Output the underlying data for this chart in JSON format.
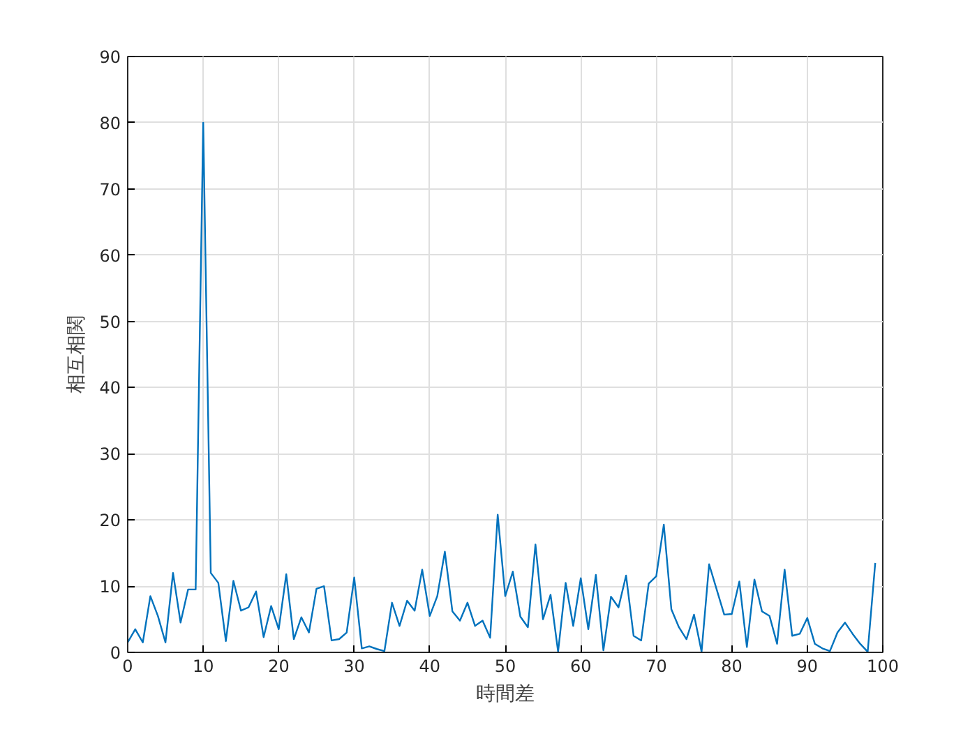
{
  "chart_data": {
    "type": "line",
    "xlabel": "時間差",
    "ylabel": "相互相関",
    "x": [
      0,
      1,
      2,
      3,
      4,
      5,
      6,
      7,
      8,
      9,
      10,
      11,
      12,
      13,
      14,
      15,
      16,
      17,
      18,
      19,
      20,
      21,
      22,
      23,
      24,
      25,
      26,
      27,
      28,
      29,
      30,
      31,
      32,
      33,
      34,
      35,
      36,
      37,
      38,
      39,
      40,
      41,
      42,
      43,
      44,
      45,
      46,
      47,
      48,
      49,
      50,
      51,
      52,
      53,
      54,
      55,
      56,
      57,
      58,
      59,
      60,
      61,
      62,
      63,
      64,
      65,
      66,
      67,
      68,
      69,
      70,
      71,
      72,
      73,
      74,
      75,
      76,
      77,
      78,
      79,
      80,
      81,
      82,
      83,
      84,
      85,
      86,
      87,
      88,
      89,
      90,
      91,
      92,
      93,
      94,
      95,
      96,
      97,
      98,
      99
    ],
    "series": [
      {
        "color": "#0072bd",
        "values": [
          1.5,
          3.5,
          1.5,
          8.5,
          5.5,
          1.5,
          12,
          4.5,
          9.5,
          9.5,
          80,
          12,
          10.5,
          1.7,
          10.8,
          6.3,
          6.8,
          9.2,
          2.3,
          7,
          3.5,
          11.8,
          2,
          5.3,
          3,
          9.6,
          10,
          1.8,
          2,
          3,
          11.3,
          0.6,
          0.9,
          0.5,
          0.2,
          7.5,
          4,
          7.8,
          6.3,
          12.5,
          5.5,
          8.5,
          15.2,
          6.2,
          4.8,
          7.5,
          4,
          4.8,
          2.2,
          20.8,
          8.5,
          12.2,
          5.4,
          3.8,
          16.3,
          5,
          8.7,
          0.1,
          10.5,
          4,
          11.2,
          3.5,
          11.7,
          0.3,
          8.4,
          6.8,
          11.6,
          2.5,
          1.8,
          10.4,
          11.5,
          19.3,
          6.5,
          3.8,
          2,
          5.7,
          0.1,
          13.3,
          9.5,
          5.7,
          5.8,
          10.7,
          0.8,
          11,
          6.2,
          5.5,
          1.3,
          12.5,
          2.5,
          2.8,
          5.2,
          1.3,
          0.6,
          0.2,
          3,
          4.5,
          2.8,
          1.3,
          0.1,
          13.5
        ]
      }
    ],
    "xlim": [
      0,
      100
    ],
    "ylim": [
      0,
      90
    ],
    "xticks": [
      0,
      10,
      20,
      30,
      40,
      50,
      60,
      70,
      80,
      90,
      100
    ],
    "yticks": [
      0,
      10,
      20,
      30,
      40,
      50,
      60,
      70,
      80,
      90
    ],
    "grid": true,
    "line_style": "solid",
    "marker": "none"
  }
}
